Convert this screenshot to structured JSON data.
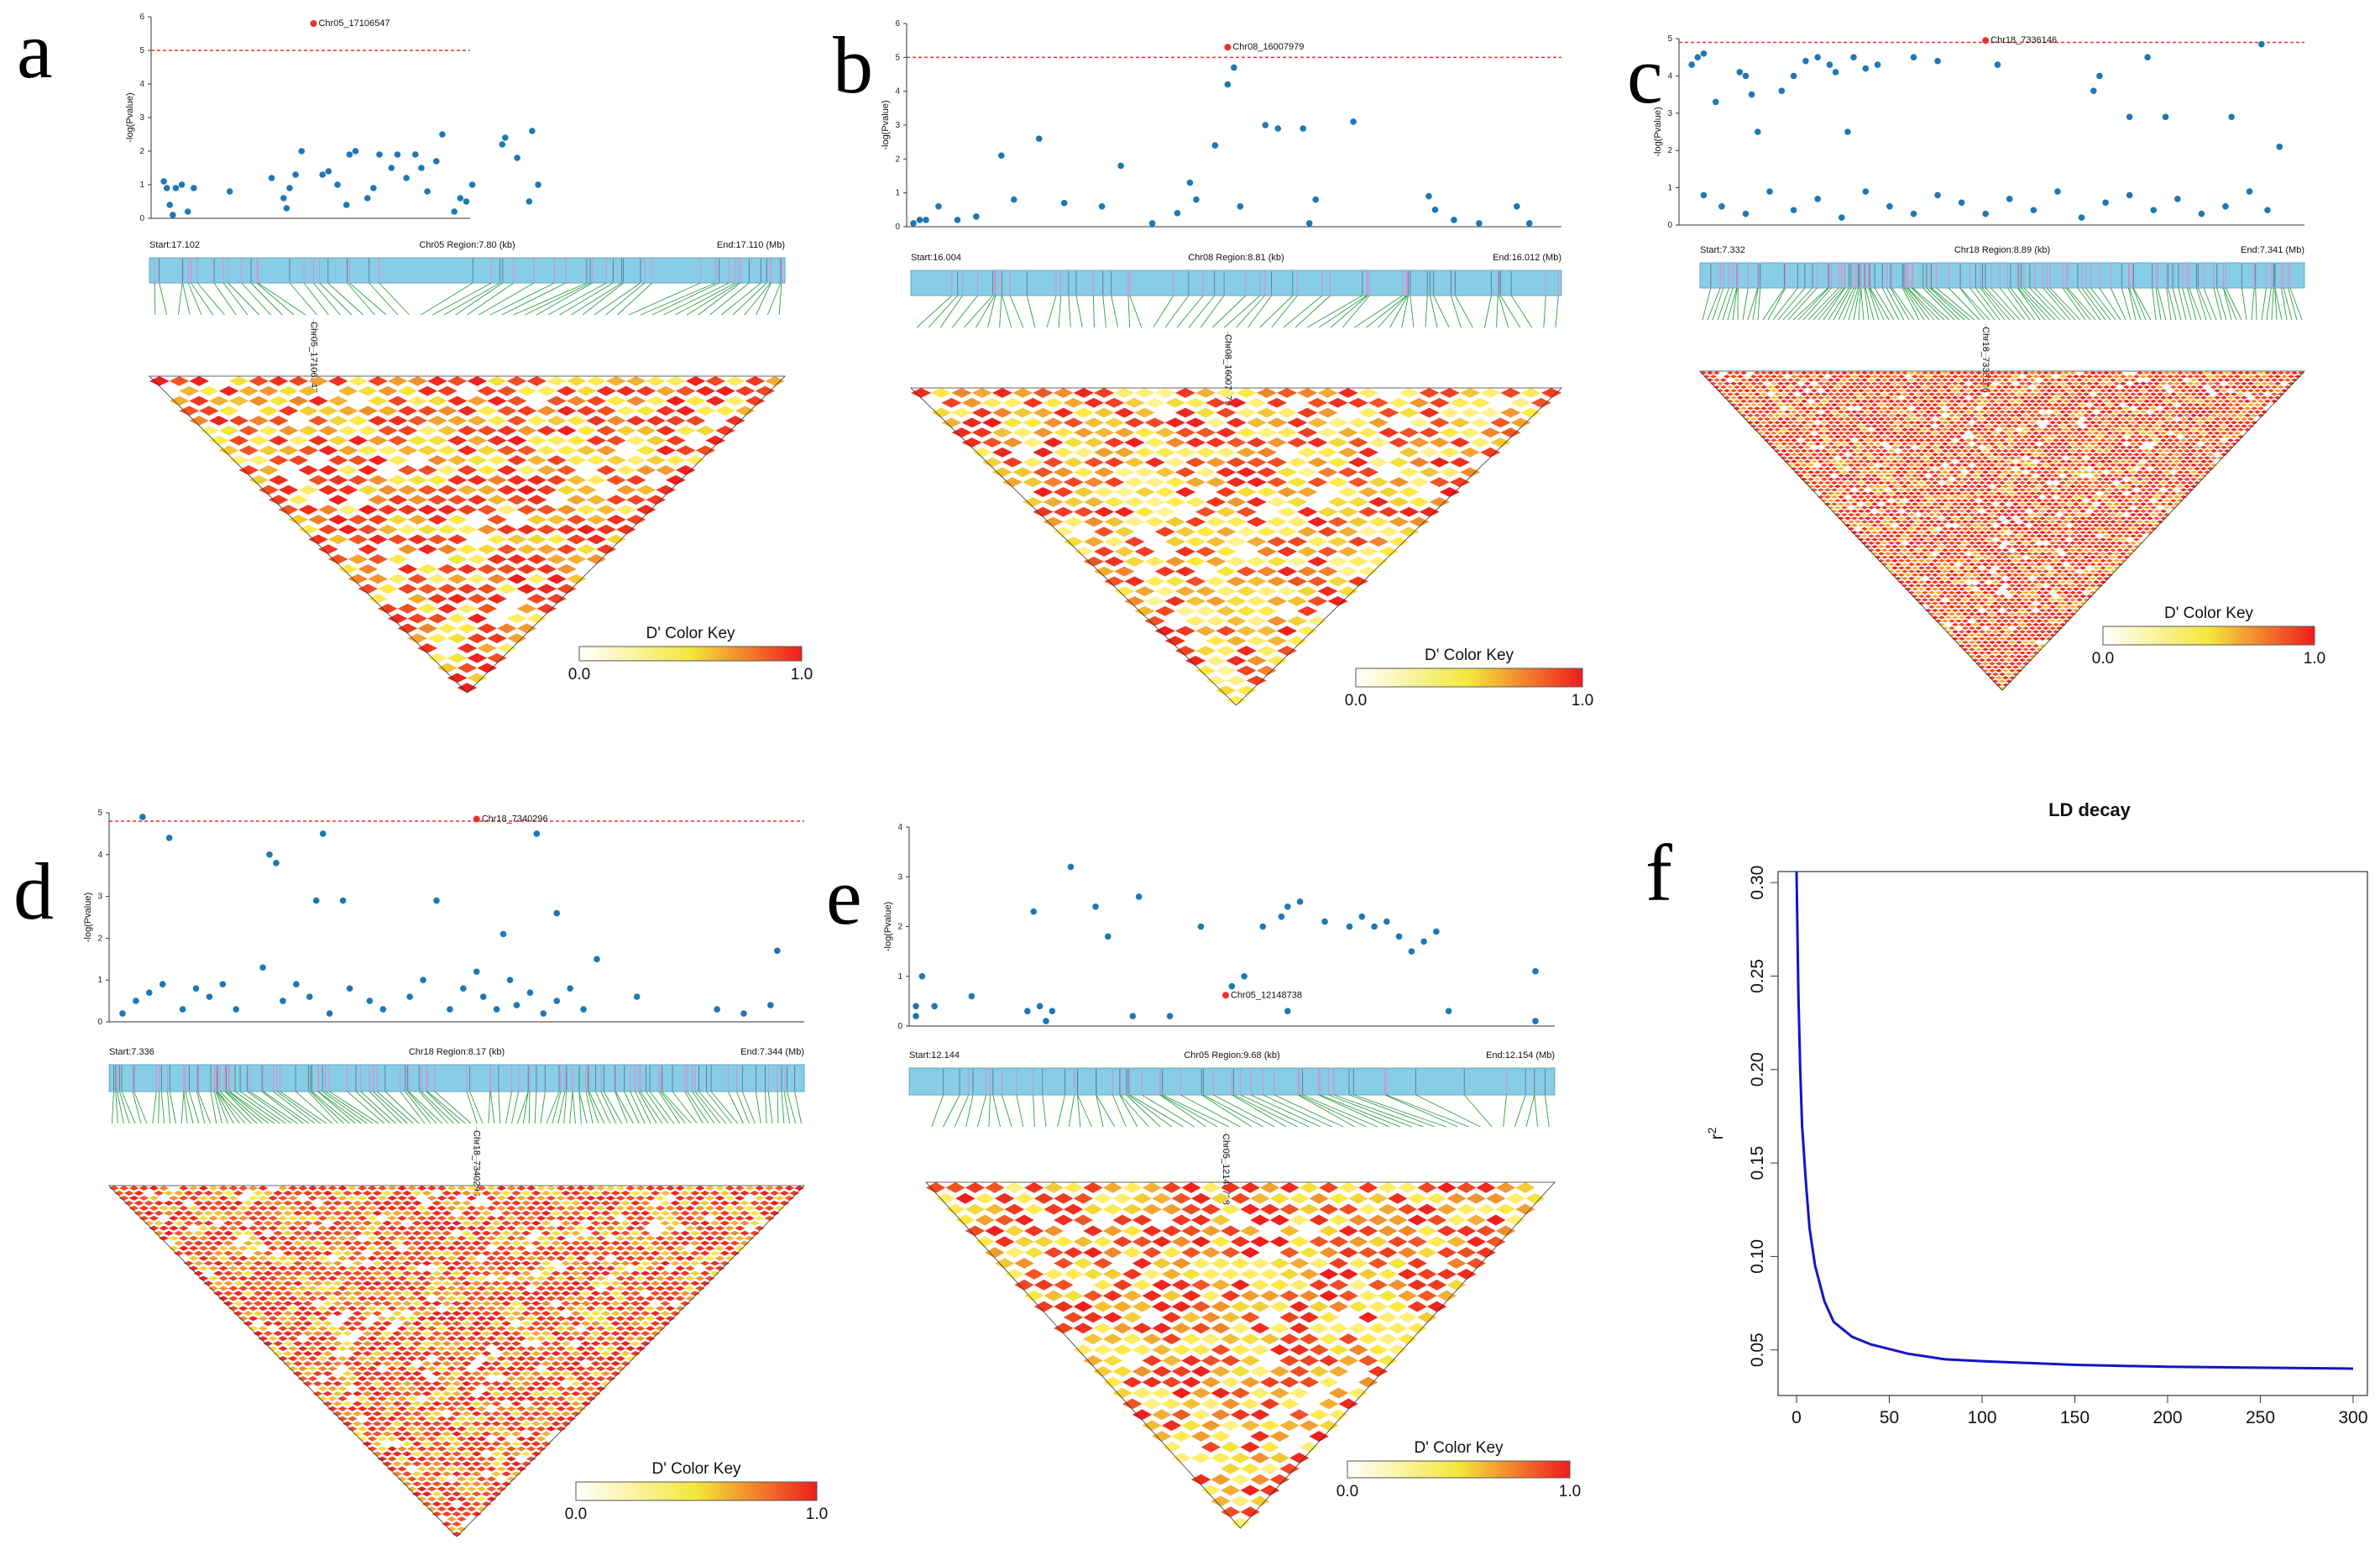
{
  "colors": {
    "point": "#1f77b4",
    "lead": "#e8322a",
    "threshold": "#e8322a",
    "gene_bar": "#87cde6",
    "gene_tick": "#d98cc8",
    "connector": "#2e9d43",
    "key_low": "#ffffff",
    "key_mid": "#f3e73b",
    "key_high": "#ef1c1c",
    "decay_line": "#1414c8"
  },
  "chart_data": [
    {
      "panel": "a",
      "type": "scatter",
      "ylabel": "-log(Pvalue)",
      "ylim": [
        0,
        6
      ],
      "yticks": [
        "0",
        "1",
        "2",
        "3",
        "4",
        "5",
        "6"
      ],
      "threshold": 5,
      "region": {
        "start": "Start:17.102",
        "center": "Chr05 Region:7.80 (kb)",
        "end": "End:17.110 (Mb)"
      },
      "lead_snp": {
        "label": "Chr05_17106547",
        "x": 0.52,
        "y": 5.8
      },
      "values": [
        [
          0.02,
          1.1
        ],
        [
          0.03,
          0.9
        ],
        [
          0.04,
          0.4
        ],
        [
          0.05,
          0.1
        ],
        [
          0.06,
          0.9
        ],
        [
          0.08,
          1.0
        ],
        [
          0.1,
          0.2
        ],
        [
          0.12,
          0.9
        ],
        [
          0.24,
          0.8
        ],
        [
          0.38,
          1.2
        ],
        [
          0.42,
          0.6
        ],
        [
          0.43,
          0.3
        ],
        [
          0.44,
          0.9
        ],
        [
          0.46,
          1.3
        ],
        [
          0.48,
          2.0
        ],
        [
          0.55,
          1.3
        ],
        [
          0.57,
          1.4
        ],
        [
          0.6,
          1.0
        ],
        [
          0.63,
          0.4
        ],
        [
          0.64,
          1.9
        ],
        [
          0.66,
          2.0
        ],
        [
          0.7,
          0.6
        ],
        [
          0.72,
          0.9
        ],
        [
          0.74,
          1.9
        ],
        [
          0.78,
          1.5
        ],
        [
          0.8,
          1.9
        ],
        [
          0.83,
          1.2
        ],
        [
          0.86,
          1.9
        ],
        [
          0.88,
          1.5
        ],
        [
          0.9,
          0.8
        ],
        [
          0.93,
          1.7
        ],
        [
          0.95,
          2.5
        ],
        [
          0.99,
          0.2
        ],
        [
          1.01,
          0.6
        ],
        [
          1.03,
          0.5
        ],
        [
          1.05,
          1.0
        ],
        [
          1.15,
          2.2
        ],
        [
          1.16,
          2.4
        ],
        [
          1.2,
          1.8
        ],
        [
          1.24,
          0.5
        ],
        [
          1.25,
          2.6
        ],
        [
          1.27,
          1.0
        ]
      ],
      "key": {
        "title": "D' Color Key",
        "min": "0.0",
        "max": "1.0"
      },
      "ld_density": 0.45
    },
    {
      "panel": "b",
      "type": "scatter",
      "ylabel": "-log(Pvalue)",
      "ylim": [
        0,
        6
      ],
      "yticks": [
        "0",
        "1",
        "2",
        "3",
        "4",
        "5",
        "6"
      ],
      "threshold": 5,
      "region": {
        "start": "Start:16.004",
        "center": "Chr08 Region:8.81 (kb)",
        "end": "End:16.012 (Mb)"
      },
      "lead_snp": {
        "label": "Chr08_16007979",
        "x": 0.5,
        "y": 5.3
      },
      "values": [
        [
          0.0,
          0.1
        ],
        [
          0.01,
          0.2
        ],
        [
          0.02,
          0.2
        ],
        [
          0.04,
          0.6
        ],
        [
          0.07,
          0.2
        ],
        [
          0.1,
          0.3
        ],
        [
          0.14,
          2.1
        ],
        [
          0.16,
          0.8
        ],
        [
          0.2,
          2.6
        ],
        [
          0.24,
          0.7
        ],
        [
          0.3,
          0.6
        ],
        [
          0.33,
          1.8
        ],
        [
          0.38,
          0.1
        ],
        [
          0.42,
          0.4
        ],
        [
          0.44,
          1.3
        ],
        [
          0.45,
          0.8
        ],
        [
          0.48,
          2.4
        ],
        [
          0.5,
          4.2
        ],
        [
          0.51,
          4.7
        ],
        [
          0.52,
          0.6
        ],
        [
          0.56,
          3.0
        ],
        [
          0.58,
          2.9
        ],
        [
          0.62,
          2.9
        ],
        [
          0.63,
          0.1
        ],
        [
          0.64,
          0.8
        ],
        [
          0.7,
          3.1
        ],
        [
          0.82,
          0.9
        ],
        [
          0.83,
          0.5
        ],
        [
          0.86,
          0.2
        ],
        [
          0.9,
          0.1
        ],
        [
          0.96,
          0.6
        ],
        [
          0.98,
          0.1
        ]
      ],
      "key": {
        "title": "D' Color Key",
        "min": "0.0",
        "max": "1.0"
      },
      "ld_density": 0.35
    },
    {
      "panel": "c",
      "type": "scatter",
      "ylabel": "-log(Pvalue)",
      "ylim": [
        0,
        5
      ],
      "yticks": [
        "0",
        "1",
        "2",
        "3",
        "4",
        "5"
      ],
      "threshold": 4.9,
      "region": {
        "start": "Start:7.332",
        "center": "Chr18 Region:8.89 (kb)",
        "end": "End:7.341 (Mb)"
      },
      "lead_snp": {
        "label": "Chr18_7336146",
        "x": 0.5,
        "y": 4.95
      },
      "values": [
        [
          0.01,
          4.3
        ],
        [
          0.02,
          4.5
        ],
        [
          0.03,
          4.6
        ],
        [
          0.05,
          3.3
        ],
        [
          0.09,
          4.1
        ],
        [
          0.1,
          4.0
        ],
        [
          0.11,
          3.5
        ],
        [
          0.12,
          2.5
        ],
        [
          0.16,
          3.6
        ],
        [
          0.18,
          4.0
        ],
        [
          0.2,
          4.4
        ],
        [
          0.22,
          4.5
        ],
        [
          0.24,
          4.3
        ],
        [
          0.25,
          4.1
        ],
        [
          0.27,
          2.5
        ],
        [
          0.28,
          4.5
        ],
        [
          0.3,
          4.2
        ],
        [
          0.32,
          4.3
        ],
        [
          0.38,
          4.5
        ],
        [
          0.42,
          4.4
        ],
        [
          0.52,
          4.3
        ],
        [
          0.68,
          3.6
        ],
        [
          0.69,
          4.0
        ],
        [
          0.74,
          2.9
        ],
        [
          0.77,
          4.5
        ],
        [
          0.8,
          2.9
        ],
        [
          0.91,
          2.9
        ],
        [
          0.96,
          4.85
        ],
        [
          0.99,
          2.1
        ],
        [
          0.03,
          0.8
        ],
        [
          0.06,
          0.5
        ],
        [
          0.1,
          0.3
        ],
        [
          0.14,
          0.9
        ],
        [
          0.18,
          0.4
        ],
        [
          0.22,
          0.7
        ],
        [
          0.26,
          0.2
        ],
        [
          0.3,
          0.9
        ],
        [
          0.34,
          0.5
        ],
        [
          0.38,
          0.3
        ],
        [
          0.42,
          0.8
        ],
        [
          0.46,
          0.6
        ],
        [
          0.5,
          0.3
        ],
        [
          0.54,
          0.7
        ],
        [
          0.58,
          0.4
        ],
        [
          0.62,
          0.9
        ],
        [
          0.66,
          0.2
        ],
        [
          0.7,
          0.6
        ],
        [
          0.74,
          0.8
        ],
        [
          0.78,
          0.4
        ],
        [
          0.82,
          0.7
        ],
        [
          0.86,
          0.3
        ],
        [
          0.9,
          0.5
        ],
        [
          0.94,
          0.9
        ],
        [
          0.97,
          0.4
        ]
      ],
      "key": {
        "title": "D' Color Key",
        "min": "0.0",
        "max": "1.0"
      },
      "ld_density": 0.75
    },
    {
      "panel": "d",
      "type": "scatter",
      "ylabel": "-log(Pvalue)",
      "ylim": [
        0,
        5
      ],
      "yticks": [
        "0",
        "1",
        "2",
        "3",
        "4",
        "5"
      ],
      "threshold": 4.8,
      "region": {
        "start": "Start:7.336",
        "center": "Chr18 Region:8.17 (kb)",
        "end": "End:7.344 (Mb)"
      },
      "lead_snp": {
        "label": "Chr18_7340296",
        "x": 0.54,
        "y": 4.85
      },
      "values": [
        [
          0.04,
          4.9
        ],
        [
          0.08,
          4.4
        ],
        [
          0.24,
          3.8
        ],
        [
          0.23,
          4.0
        ],
        [
          0.31,
          4.5
        ],
        [
          0.3,
          2.9
        ],
        [
          0.34,
          2.9
        ],
        [
          0.48,
          2.9
        ],
        [
          0.63,
          4.5
        ],
        [
          0.58,
          2.1
        ],
        [
          0.66,
          2.6
        ],
        [
          0.72,
          1.5
        ],
        [
          0.99,
          1.7
        ],
        [
          0.01,
          0.2
        ],
        [
          0.03,
          0.5
        ],
        [
          0.05,
          0.7
        ],
        [
          0.07,
          0.9
        ],
        [
          0.1,
          0.3
        ],
        [
          0.12,
          0.8
        ],
        [
          0.14,
          0.6
        ],
        [
          0.16,
          0.9
        ],
        [
          0.18,
          0.3
        ],
        [
          0.22,
          1.3
        ],
        [
          0.25,
          0.5
        ],
        [
          0.27,
          0.9
        ],
        [
          0.29,
          0.6
        ],
        [
          0.32,
          0.2
        ],
        [
          0.35,
          0.8
        ],
        [
          0.38,
          0.5
        ],
        [
          0.4,
          0.3
        ],
        [
          0.44,
          0.6
        ],
        [
          0.46,
          1.0
        ],
        [
          0.5,
          0.3
        ],
        [
          0.52,
          0.8
        ],
        [
          0.54,
          1.2
        ],
        [
          0.55,
          0.6
        ],
        [
          0.57,
          0.3
        ],
        [
          0.59,
          1.0
        ],
        [
          0.6,
          0.4
        ],
        [
          0.62,
          0.7
        ],
        [
          0.64,
          0.2
        ],
        [
          0.66,
          0.5
        ],
        [
          0.68,
          0.8
        ],
        [
          0.7,
          0.3
        ],
        [
          0.78,
          0.6
        ],
        [
          0.9,
          0.3
        ],
        [
          0.94,
          0.2
        ],
        [
          0.98,
          0.4
        ]
      ],
      "key": {
        "title": "D' Color Key",
        "min": "0.0",
        "max": "1.0"
      },
      "ld_density": 0.62
    },
    {
      "panel": "e",
      "type": "scatter",
      "ylabel": "-log(Pvalue)",
      "ylim": [
        0,
        4
      ],
      "yticks": [
        "0",
        "1",
        "2",
        "3",
        "4"
      ],
      "threshold": null,
      "region": {
        "start": "Start:12.144",
        "center": "Chr05 Region:9.68 (kb)",
        "end": "End:12.154 (Mb)"
      },
      "lead_snp": {
        "label": "Chr05_12148738",
        "x": 0.5,
        "y": 0.62
      },
      "values": [
        [
          0.0,
          0.4
        ],
        [
          0.0,
          0.2
        ],
        [
          0.01,
          1.0
        ],
        [
          0.03,
          0.4
        ],
        [
          0.09,
          0.6
        ],
        [
          0.18,
          0.3
        ],
        [
          0.19,
          2.3
        ],
        [
          0.2,
          0.4
        ],
        [
          0.21,
          0.1
        ],
        [
          0.22,
          0.3
        ],
        [
          0.25,
          3.2
        ],
        [
          0.29,
          2.4
        ],
        [
          0.31,
          1.8
        ],
        [
          0.36,
          2.6
        ],
        [
          0.41,
          0.2
        ],
        [
          0.46,
          2.0
        ],
        [
          0.51,
          0.8
        ],
        [
          0.53,
          1.0
        ],
        [
          0.56,
          2.0
        ],
        [
          0.59,
          2.2
        ],
        [
          0.6,
          2.4
        ],
        [
          0.62,
          2.5
        ],
        [
          0.66,
          2.1
        ],
        [
          0.7,
          2.0
        ],
        [
          0.72,
          2.2
        ],
        [
          0.74,
          2.0
        ],
        [
          0.76,
          2.1
        ],
        [
          0.78,
          1.8
        ],
        [
          0.8,
          1.5
        ],
        [
          0.82,
          1.7
        ],
        [
          0.84,
          1.9
        ],
        [
          0.86,
          0.3
        ],
        [
          0.6,
          0.3
        ],
        [
          0.35,
          0.2
        ],
        [
          1.0,
          0.1
        ],
        [
          1.0,
          1.1
        ]
      ],
      "key": {
        "title": "D' Color Key",
        "min": "0.0",
        "max": "1.0"
      },
      "ld_density": 0.42
    },
    {
      "panel": "f",
      "type": "line",
      "title": "LD decay",
      "xlabel": "",
      "ylabel": "r2",
      "xlim": [
        0,
        300
      ],
      "ylim": [
        0.04,
        0.305
      ],
      "xticks": [
        "0",
        "50",
        "100",
        "150",
        "200",
        "250",
        "300"
      ],
      "yticks": [
        "0.05",
        "0.10",
        "0.15",
        "0.20",
        "0.25",
        "0.30"
      ],
      "x": [
        0,
        1,
        2,
        3,
        5,
        7,
        10,
        15,
        20,
        30,
        40,
        60,
        80,
        100,
        150,
        200,
        250,
        300
      ],
      "y": [
        0.306,
        0.24,
        0.2,
        0.17,
        0.14,
        0.115,
        0.095,
        0.076,
        0.065,
        0.057,
        0.053,
        0.048,
        0.045,
        0.044,
        0.042,
        0.041,
        0.0405,
        0.04
      ]
    }
  ],
  "panel_labels": [
    "a",
    "b",
    "c",
    "d",
    "e",
    "f"
  ]
}
